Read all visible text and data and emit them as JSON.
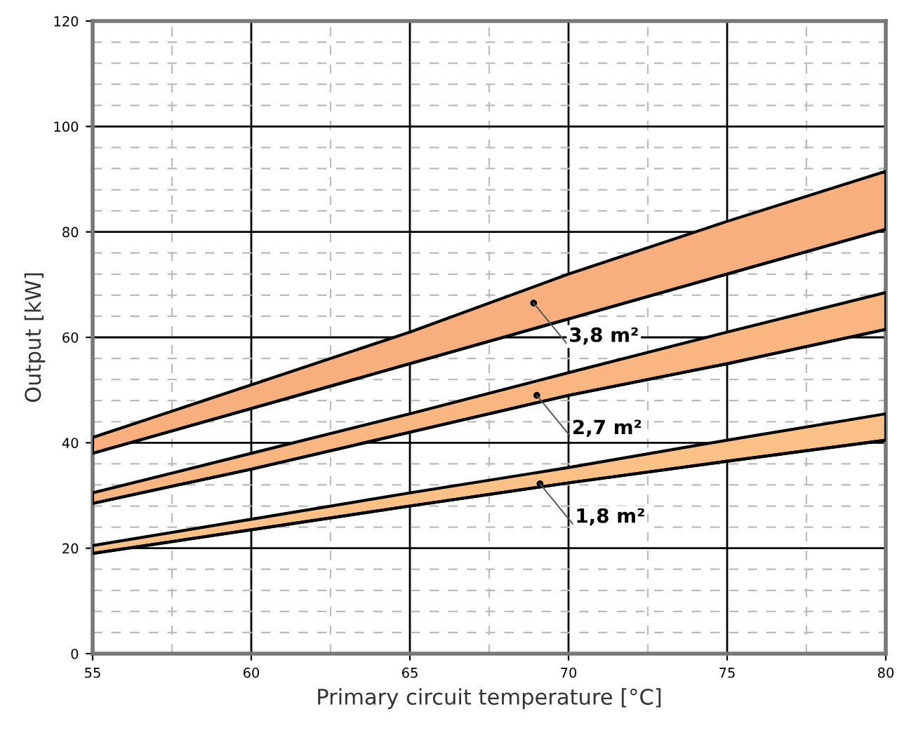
{
  "chart_data": {
    "type": "area",
    "xlabel": "Primary circuit temperature [°C]",
    "ylabel": "Output [kW]",
    "x": [
      55,
      60,
      65,
      70,
      75,
      80
    ],
    "series": [
      {
        "color": "#f8ae7d",
        "values": [
          41,
          51,
          61,
          72,
          82,
          91.5
        ]
      },
      {
        "color": "#f9b681",
        "values": [
          30.5,
          38,
          45.5,
          53.3,
          61,
          68.5
        ]
      },
      {
        "color": "#fbc086",
        "values": [
          20.5,
          25.5,
          30.5,
          35.3,
          40.5,
          45.5
        ]
      },
      {
        "type": "line",
        "color": "#000000",
        "values": [
          38,
          46.5,
          55,
          63.5,
          72,
          80.5
        ]
      },
      {
        "type": "line",
        "color": "#000000",
        "values": [
          28.5,
          35,
          42,
          49,
          55,
          61.5
        ]
      },
      {
        "type": "line",
        "color": "#000000",
        "values": [
          19,
          23.5,
          28,
          32.4,
          36.5,
          40.5
        ]
      }
    ],
    "annotations": [
      {
        "text": "3,8 m²",
        "x": 68.9,
        "y": 66.5
      },
      {
        "text": "2,7 m²",
        "x": 69,
        "y": 49
      },
      {
        "text": "1,8 m²",
        "x": 69.1,
        "y": 32.2
      }
    ],
    "xlim": [
      55,
      80
    ],
    "ylim": [
      0,
      120
    ],
    "xticks": [
      55,
      60,
      65,
      70,
      75,
      80
    ],
    "yticks": [
      0,
      20,
      40,
      60,
      80,
      100,
      120
    ],
    "grid": true,
    "legend": false,
    "line_style": "solid",
    "marker": "none"
  }
}
